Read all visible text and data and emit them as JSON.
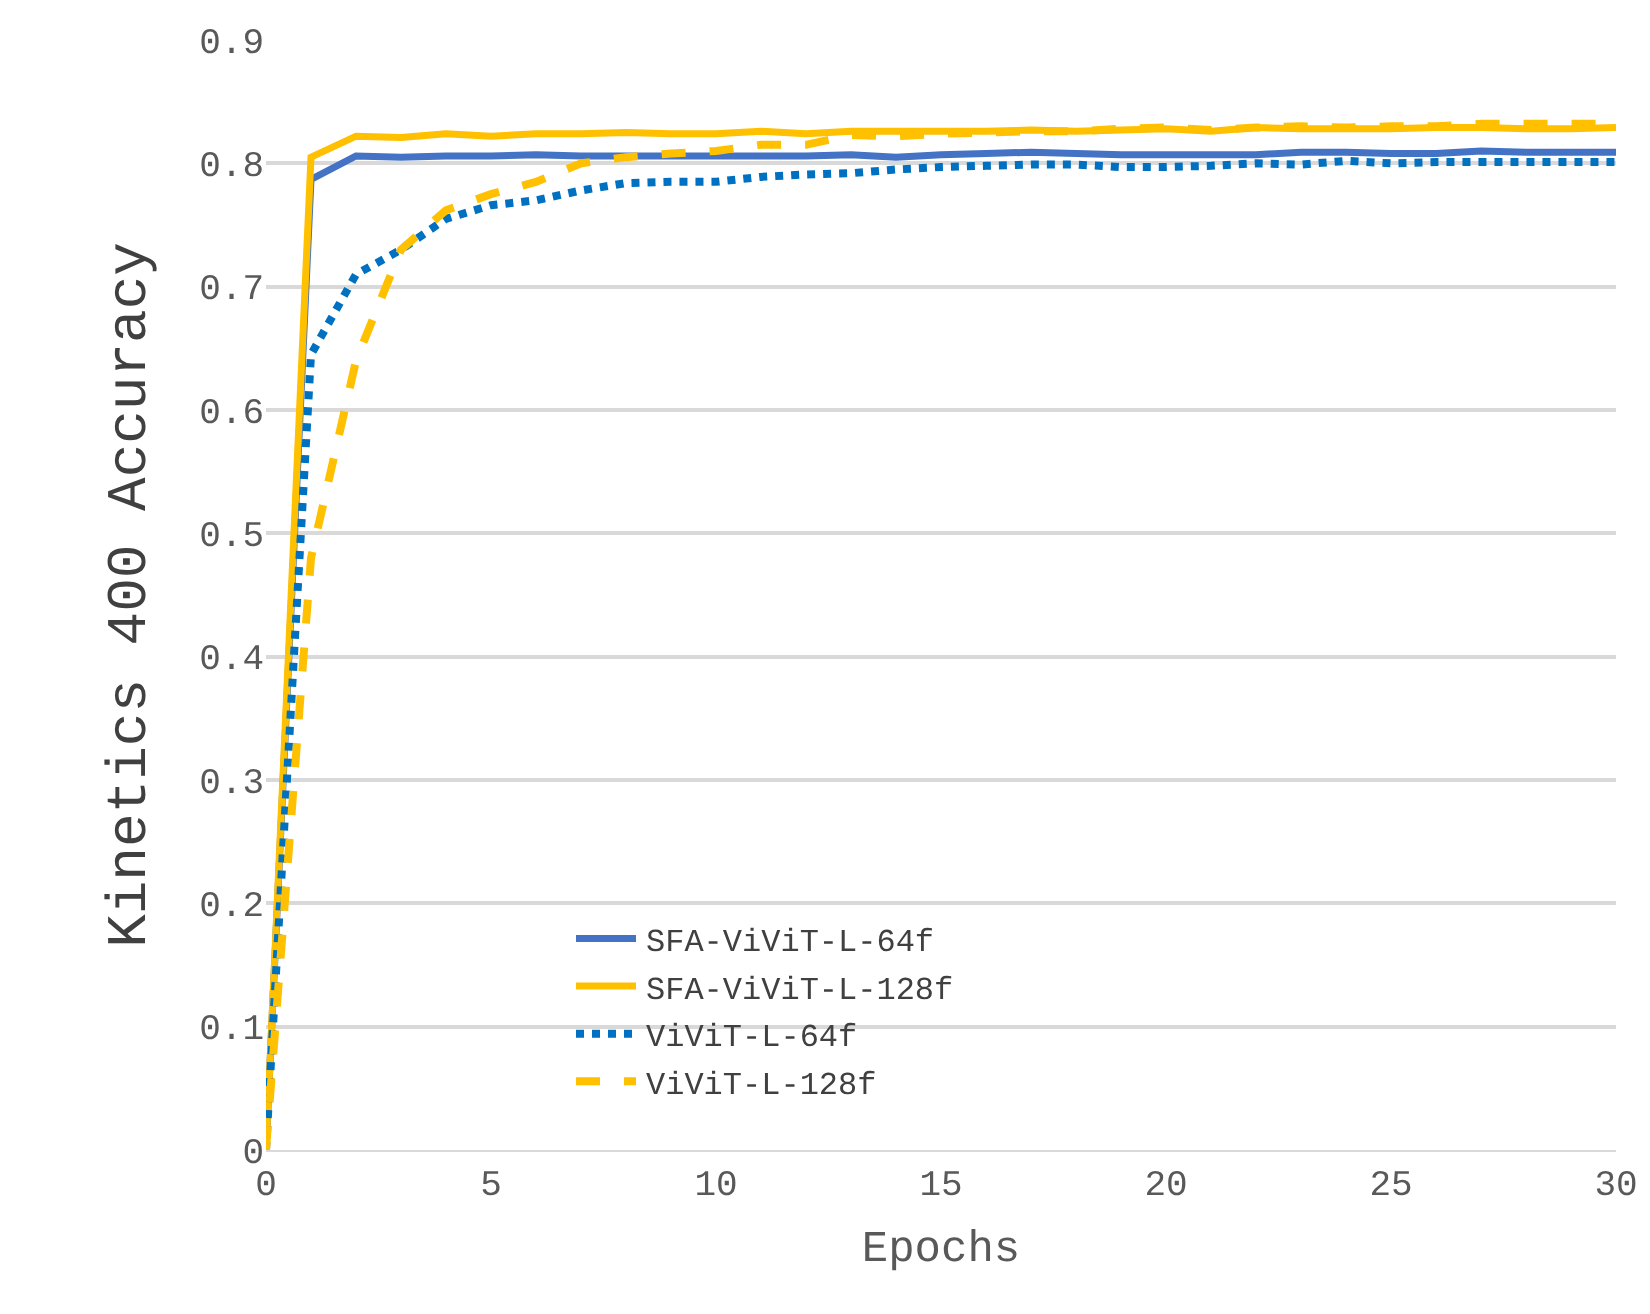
{
  "chart_data": {
    "type": "line",
    "xlabel": "Epochs",
    "ylabel": "Kinetics 400 Accuracy",
    "x": [
      0,
      1,
      2,
      3,
      4,
      5,
      6,
      7,
      8,
      9,
      10,
      11,
      12,
      13,
      14,
      15,
      16,
      17,
      18,
      19,
      20,
      21,
      22,
      23,
      24,
      25,
      26,
      27,
      28,
      29,
      30
    ],
    "series": [
      {
        "name": "SFA-ViViT-L-64f",
        "color": "#4472c4",
        "line_style": "solid",
        "values": [
          0,
          0.787,
          0.806,
          0.805,
          0.806,
          0.806,
          0.807,
          0.806,
          0.806,
          0.806,
          0.806,
          0.806,
          0.806,
          0.807,
          0.805,
          0.807,
          0.808,
          0.809,
          0.808,
          0.807,
          0.807,
          0.807,
          0.807,
          0.809,
          0.809,
          0.808,
          0.808,
          0.81,
          0.809,
          0.809,
          0.809
        ]
      },
      {
        "name": "SFA-ViViT-L-128f",
        "color": "#ffc000",
        "line_style": "solid",
        "values": [
          0,
          0.805,
          0.822,
          0.821,
          0.824,
          0.822,
          0.824,
          0.824,
          0.825,
          0.824,
          0.824,
          0.826,
          0.824,
          0.826,
          0.826,
          0.826,
          0.826,
          0.827,
          0.826,
          0.827,
          0.828,
          0.826,
          0.829,
          0.828,
          0.828,
          0.828,
          0.829,
          0.829,
          0.828,
          0.828,
          0.829
        ]
      },
      {
        "name": "ViViT-L-64f",
        "color": "#0070c0",
        "line_style": "dotted",
        "values": [
          0,
          0.645,
          0.71,
          0.73,
          0.755,
          0.766,
          0.77,
          0.778,
          0.784,
          0.785,
          0.785,
          0.789,
          0.791,
          0.792,
          0.795,
          0.797,
          0.798,
          0.799,
          0.799,
          0.797,
          0.797,
          0.798,
          0.8,
          0.799,
          0.802,
          0.8,
          0.801,
          0.801,
          0.801,
          0.801,
          0.801
        ]
      },
      {
        "name": "ViViT-L-128f",
        "color": "#ffc000",
        "line_style": "dashed",
        "values": [
          0,
          0.48,
          0.64,
          0.73,
          0.762,
          0.775,
          0.785,
          0.8,
          0.805,
          0.808,
          0.81,
          0.815,
          0.815,
          0.823,
          0.822,
          0.824,
          0.825,
          0.826,
          0.826,
          0.828,
          0.829,
          0.827,
          0.829,
          0.83,
          0.829,
          0.83,
          0.83,
          0.832,
          0.832,
          0.832,
          0.832
        ]
      }
    ],
    "xlim": [
      0,
      30
    ],
    "xticks": [
      0,
      5,
      10,
      15,
      20,
      25,
      30
    ],
    "ylim": [
      0,
      0.9
    ],
    "yticks": [
      {
        "value": 0,
        "label": "0"
      },
      0.1,
      0.2,
      0.3,
      0.4,
      0.5,
      0.6,
      0.7,
      0.8,
      0.9
    ],
    "grid": "y",
    "legend": "bottom",
    "marker": "none"
  }
}
